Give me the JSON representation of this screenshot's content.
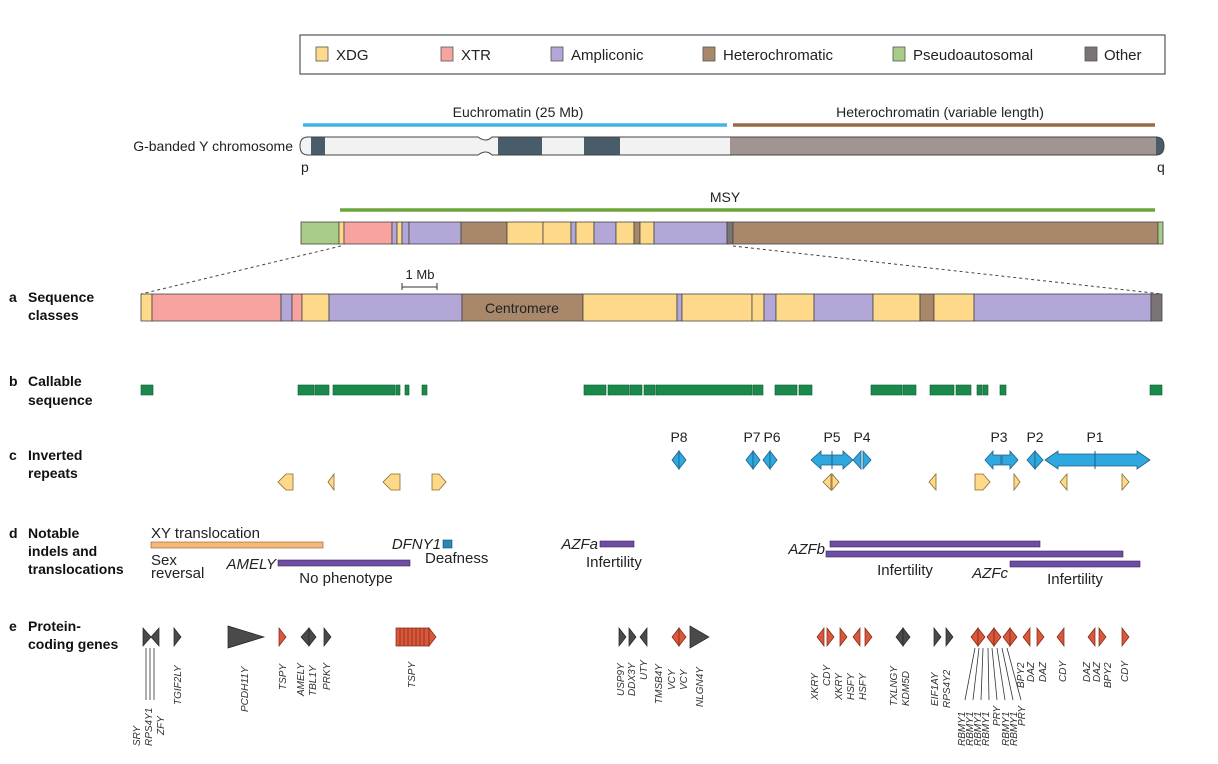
{
  "colors": {
    "xdg": "#ffd98a",
    "xtr": "#f7a3a0",
    "ampliconic": "#b2a7d6",
    "heterochromatic": "#a8876b",
    "pseudoautosomal": "#a8cc88",
    "other": "#7a7574",
    "callable": "#1a8a4c",
    "ir_blue": "#2fa8e0",
    "ir_yellow": "#ffd98a",
    "indel": "#6e4ea3",
    "xy_translocation": "#f5b77a",
    "deafness": "#2a86b8",
    "euchromatin_bar": "#41b4e6",
    "heterochromatin_bar": "#9a6a43",
    "msy_bar": "#6ba53a",
    "dark_band": "#485c6a",
    "gene_dark": "#4a4a4a",
    "gene_red": "#d9583c"
  },
  "legend": [
    {
      "key": "xdg",
      "label": "XDG"
    },
    {
      "key": "xtr",
      "label": "XTR"
    },
    {
      "key": "ampliconic",
      "label": "Ampliconic"
    },
    {
      "key": "heterochromatic",
      "label": "Heterochromatic"
    },
    {
      "key": "pseudoautosomal",
      "label": "Pseudoautosomal"
    },
    {
      "key": "other",
      "label": "Other"
    }
  ],
  "chromosome": {
    "euchromatin_label": "Euchromatin (25 Mb)",
    "heterochromatin_label": "Heterochromatin (variable length)",
    "g_banded_label": "G-banded Y chromosome",
    "p_arm": "p",
    "q_arm": "q",
    "msy_label": "MSY"
  },
  "scale": {
    "label": "1 Mb"
  },
  "sections": {
    "a": {
      "letter": "a",
      "line1": "Sequence",
      "line2": "classes",
      "centromere": "Centromere"
    },
    "b": {
      "letter": "b",
      "line1": "Callable",
      "line2": "sequence"
    },
    "c": {
      "letter": "c",
      "line1": "Inverted",
      "line2": "repeats"
    },
    "d": {
      "letter": "d",
      "line1": "Notable",
      "line2": "indels and",
      "line3": "translocations"
    },
    "e": {
      "letter": "e",
      "line1": "Protein-",
      "line2": "coding genes"
    }
  },
  "palindromes": [
    "P8",
    "P7",
    "P6",
    "P5",
    "P4",
    "P3",
    "P2",
    "P1"
  ],
  "indels": {
    "xy_translocation": "XY translocation",
    "sex_reversal_1": "Sex",
    "sex_reversal_2": "reversal",
    "amely": "AMELY",
    "no_phenotype": "No phenotype",
    "dfny1": "DFNY1",
    "deafness": "Deafness",
    "azfa": "AZFa",
    "infertility_a": "Infertility",
    "azfb": "AZFb",
    "infertility_b": "Infertility",
    "azfc": "AZFc",
    "infertility_c": "Infertility"
  },
  "genes": {
    "labels": [
      "SRY",
      "RPS4Y1",
      "ZFY",
      "TGIF2LY",
      "PCDH11Y",
      "TSPY",
      "AMELY",
      "TBL1Y",
      "PRKY",
      "TSPY",
      "USP9Y",
      "DDX3Y",
      "UTY",
      "TMSB4Y",
      "VCY",
      "VCY",
      "NLGN4Y",
      "XKRY",
      "CDY",
      "XKRY",
      "HSFY",
      "HSFY",
      "TXLNGY",
      "KDM5D",
      "EIF1AY",
      "RPS4Y2",
      "RBMY1",
      "RBMY1",
      "RBMY1",
      "RBMY1",
      "PRY",
      "RBMY1",
      "RBMY1",
      "PRY",
      "BPY2",
      "DAZ",
      "DAZ",
      "CDY",
      "DAZ",
      "DAZ",
      "BPY2",
      "CDY"
    ]
  }
}
